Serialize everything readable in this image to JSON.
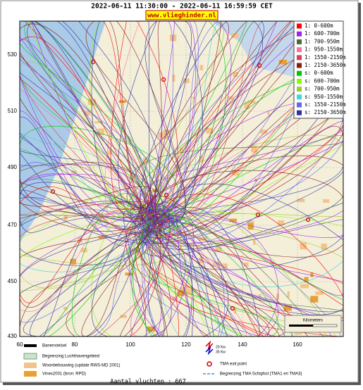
{
  "header": {
    "title": "2022-06-11 11:30:00 - 2022-06-11 16:59:59 CET",
    "site": "www.vlieghinder.nl"
  },
  "axes": {
    "y": [
      "530",
      "510",
      "490",
      "470",
      "450",
      "430"
    ],
    "x": [
      "60",
      "80",
      "100",
      "120",
      "140",
      "160"
    ]
  },
  "legend": [
    {
      "label": "1: 0-600m",
      "color": "#ff0000"
    },
    {
      "label": "1: 600-700m",
      "color": "#a020f0"
    },
    {
      "label": "1: 700-950m",
      "color": "#4b6b2a"
    },
    {
      "label": "1: 950-1550m",
      "color": "#ff6ea8"
    },
    {
      "label": "1: 1550-2150m",
      "color": "#d8405a"
    },
    {
      "label": "1: 2150-3650m",
      "color": "#8b1a1a"
    },
    {
      "label": "s: 0-600m",
      "color": "#00c800"
    },
    {
      "label": "s: 600-700m",
      "color": "#80ff00"
    },
    {
      "label": "s: 700-950m",
      "color": "#9acd32"
    },
    {
      "label": "s: 950-1550m",
      "color": "#40d8d0"
    },
    {
      "label": "s: 1550-2150m",
      "color": "#6464f0"
    },
    {
      "label": "s: 2150-3650m",
      "color": "#30309a"
    }
  ],
  "scale": {
    "title": "Kilometers"
  },
  "footer": {
    "left": [
      "Banenstelsel",
      "Begrenzing Luchthavengebied",
      "Woonbebouwing (update RWS-MD 2001)",
      "Vinex2001 (bron: RPD)"
    ],
    "noise": [
      "20 Kw",
      "35 Kw"
    ],
    "right": [
      "TMA exit point",
      "Begrenzing TMA Schiphol  (TMA1 en TMA3)"
    ],
    "count": "Aantal vluchten : 667"
  }
}
